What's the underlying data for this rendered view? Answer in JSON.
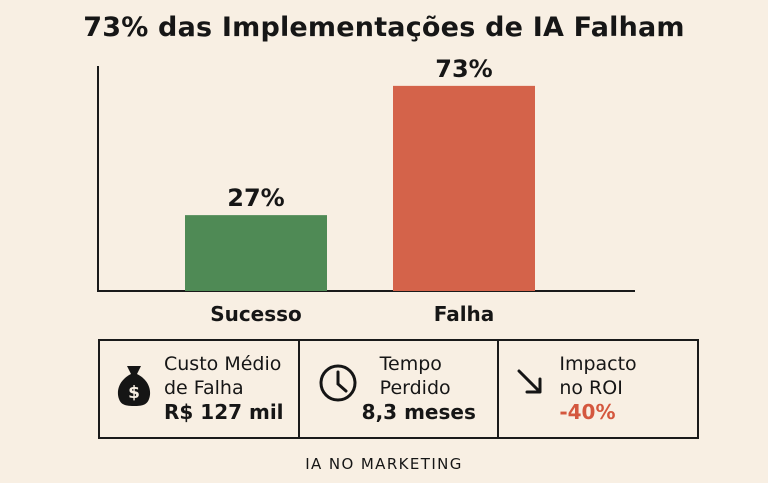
{
  "title": "73% das Implementações de IA Falham",
  "chart_data": {
    "type": "bar",
    "title": "73% das Implementações de IA Falham",
    "categories": [
      "Sucesso",
      "Falha"
    ],
    "values": [
      27,
      73
    ],
    "value_labels": [
      "27%",
      "73%"
    ],
    "unit": "%",
    "ylim": [
      0,
      100
    ],
    "colors": [
      "#4f8a55",
      "#d4634a"
    ],
    "grid": false,
    "legend": "none"
  },
  "stats": [
    {
      "icon": "money-bag-icon",
      "label_line1": "Custo Médio",
      "label_line2": "de Falha",
      "value": "R$ 127 mil"
    },
    {
      "icon": "clock-icon",
      "label_line1": "Tempo",
      "label_line2": "Perdido",
      "value": "8,3 meses"
    },
    {
      "icon": "trend-down-arrow-icon",
      "label_line1": "Impacto",
      "label_line2": "no ROI",
      "value": "-40%"
    }
  ],
  "colors": {
    "background": "#f8efe3",
    "success": "#4f8a55",
    "failure": "#d4634a",
    "negative_value": "#d4573e"
  },
  "footer": "IA NO MARKETING"
}
